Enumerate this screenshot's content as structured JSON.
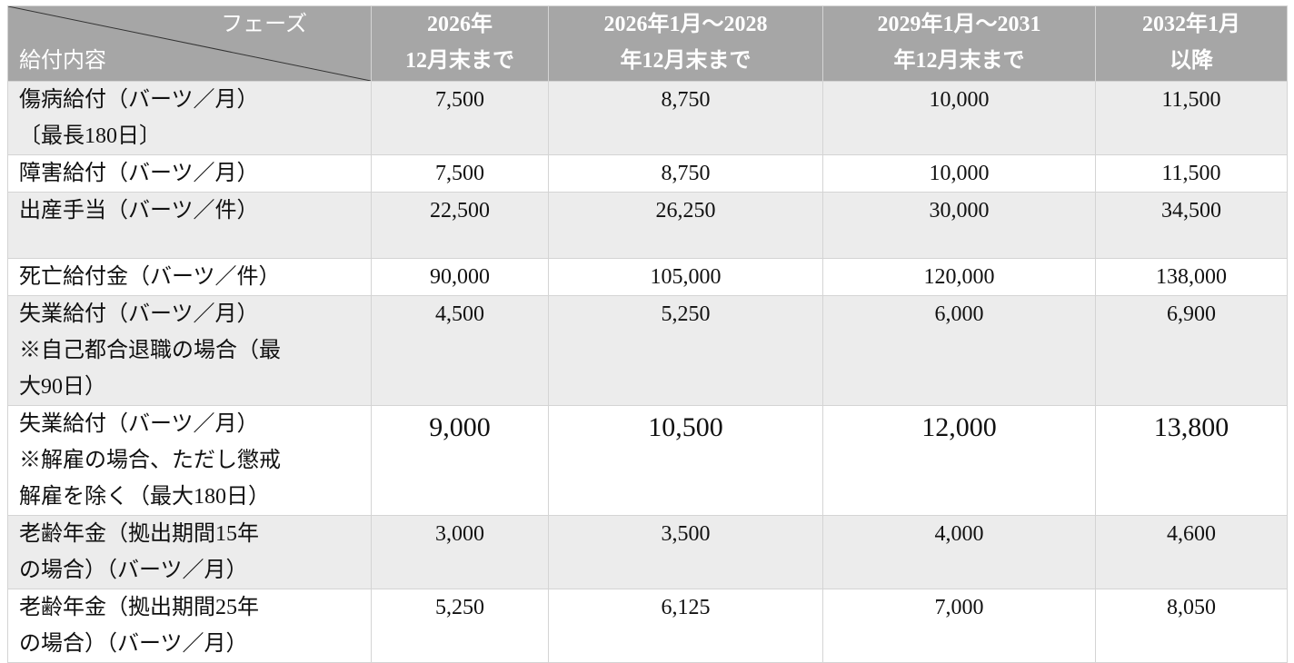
{
  "header": {
    "corner_top": "フェーズ",
    "corner_bottom": "給付内容",
    "columns": [
      [
        "2026年",
        "12月末まで"
      ],
      [
        "2026年1月～2028",
        "年12月末まで"
      ],
      [
        "2029年1月～2031",
        "年12月末まで"
      ],
      [
        "2032年1月",
        "以降"
      ]
    ]
  },
  "table": {
    "rows": [
      {
        "label": [
          "傷病給付（バーツ／月）",
          "〔最長180日〕"
        ],
        "values": [
          "7,500",
          "8,750",
          "10,000",
          "11,500"
        ]
      },
      {
        "label": [
          "障害給付（バーツ／月）"
        ],
        "values": [
          "7,500",
          "8,750",
          "10,000",
          "11,500"
        ]
      },
      {
        "label": [
          "出産手当（バーツ／件）"
        ],
        "values": [
          "22,500",
          "26,250",
          "30,000",
          "34,500"
        ]
      },
      {
        "label": [
          "死亡給付金（バーツ／件）"
        ],
        "values": [
          "90,000",
          "105,000",
          "120,000",
          "138,000"
        ]
      },
      {
        "label": [
          "失業給付（バーツ／月）",
          "※自己都合退職の場合（最",
          "大90日）"
        ],
        "values": [
          "4,500",
          "5,250",
          "6,000",
          "6,900"
        ]
      },
      {
        "label": [
          "失業給付（バーツ／月）",
          "※解雇の場合、ただし懲戒",
          "解雇を除く（最大180日）"
        ],
        "values": [
          "9,000",
          "10,500",
          "12,000",
          "13,800"
        ]
      },
      {
        "label": [
          "老齢年金（拠出期間15年",
          "の場合）（バーツ／月）"
        ],
        "values": [
          "3,000",
          "3,500",
          "4,000",
          "4,600"
        ]
      },
      {
        "label": [
          "老齢年金（拠出期間25年",
          "の場合）（バーツ／月）"
        ],
        "values": [
          "5,250",
          "6,125",
          "7,000",
          "8,050"
        ]
      }
    ]
  }
}
